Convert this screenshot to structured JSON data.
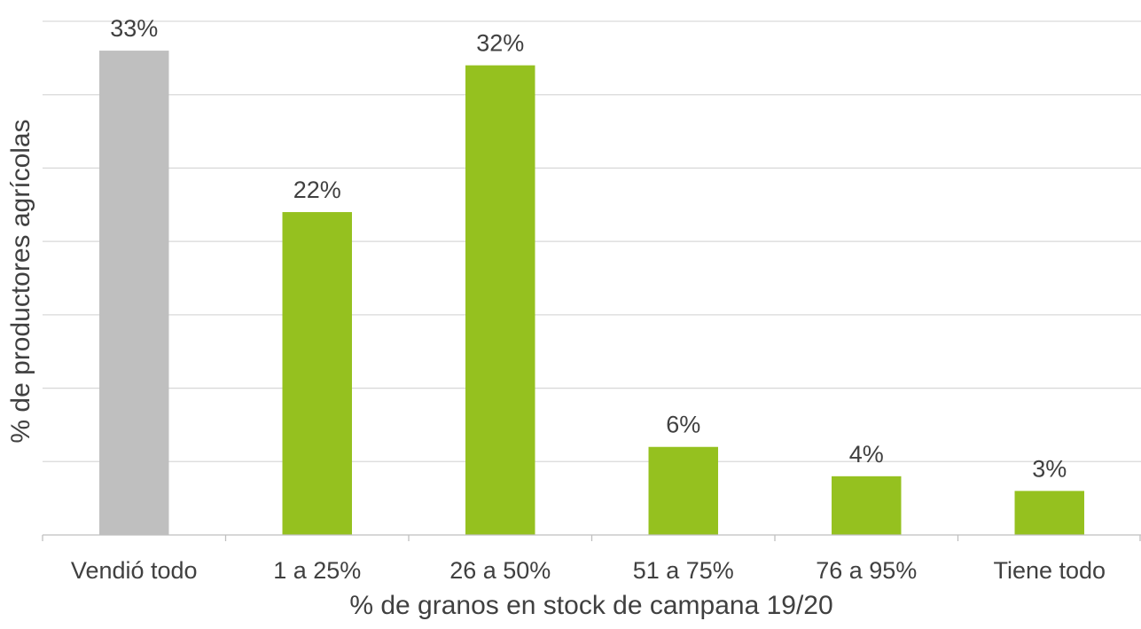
{
  "chart_data": {
    "type": "bar",
    "xlabel": "% de granos en stock de campana 19/20",
    "ylabel": "% de productores agrícolas",
    "categories": [
      "Vendió todo",
      "1 a 25%",
      "26 a 50%",
      "51 a 75%",
      "76 a 95%",
      "Tiene todo"
    ],
    "values": [
      33,
      22,
      32,
      6,
      4,
      3
    ],
    "data_labels": [
      "33%",
      "22%",
      "32%",
      "6%",
      "4%",
      "3%"
    ],
    "ylim": [
      0,
      35
    ],
    "y_gridline_step": 5,
    "y_tick_labels_shown": false,
    "grid": true,
    "legend": "none",
    "colors": {
      "highlight": "#bfbfbf",
      "bars": "#95c11f",
      "text": "#404040",
      "grid": "#d9d9d9"
    },
    "highlight_index": 0
  }
}
